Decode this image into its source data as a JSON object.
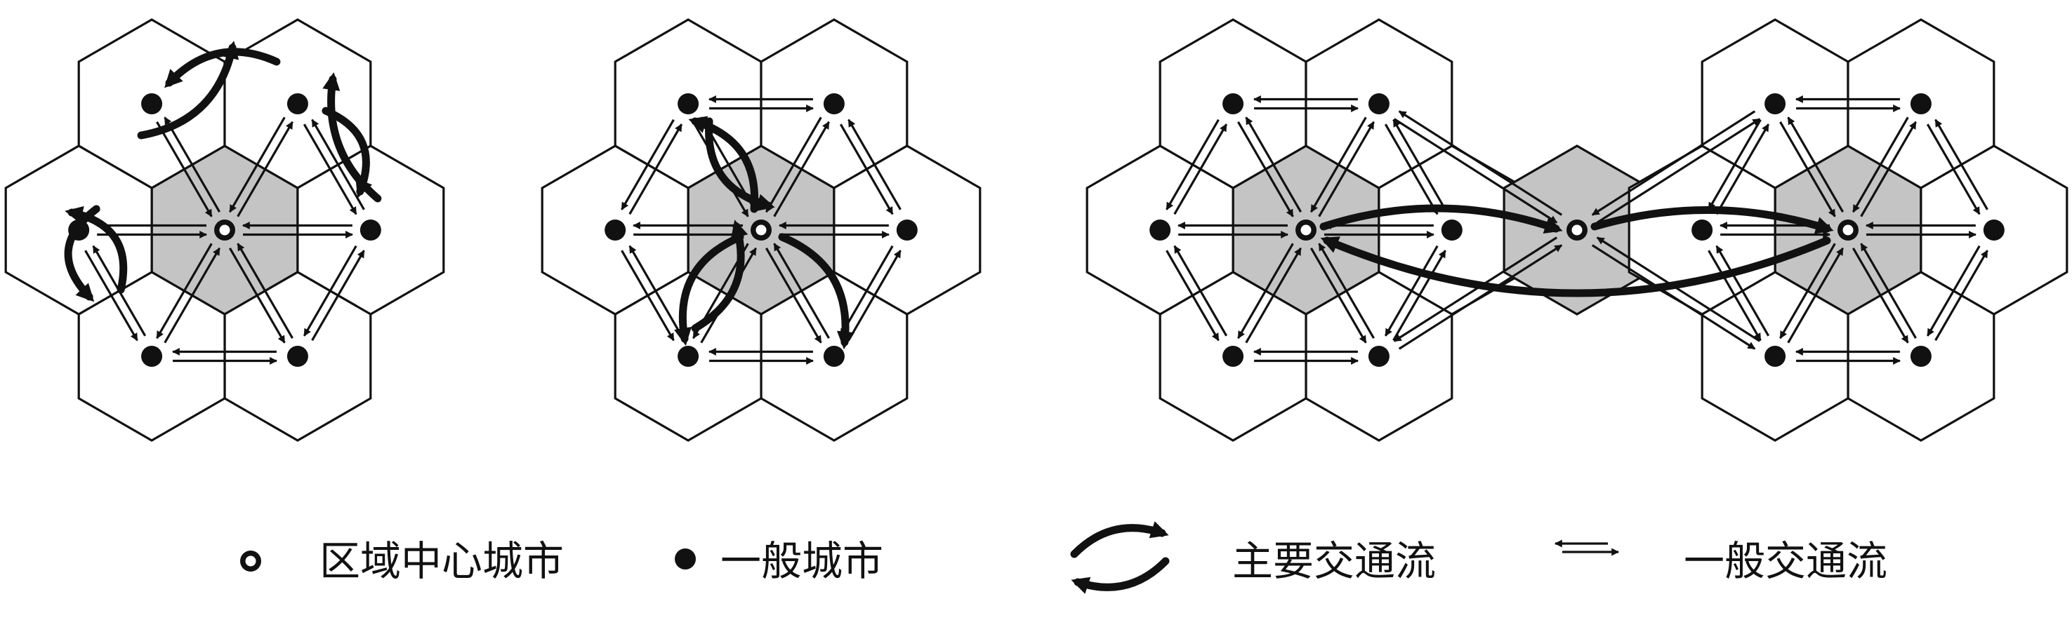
{
  "colors": {
    "hex_stroke": "#111111",
    "center_fill": "#c4c4c4",
    "city_fill": "#111111",
    "arrow": "#111111",
    "background": "#ffffff"
  },
  "legend": {
    "regional_center_city": "区域中心城市",
    "ordinary_city": "一般城市",
    "major_traffic_flow": "主要交通流",
    "ordinary_traffic_flow": "一般交通流"
  },
  "icons": {
    "regional_center_city": "ring-dot-icon",
    "ordinary_city": "filled-dot-icon",
    "major_traffic_flow": "cycle-arrows-icon",
    "ordinary_traffic_flow": "double-arrow-icon"
  },
  "diagram": {
    "panels": [
      {
        "id": "panel-1",
        "centers": 1,
        "major_flow": "between-neighbors"
      },
      {
        "id": "panel-2",
        "centers": 1,
        "major_flow": "center-to-neighbors"
      },
      {
        "id": "panel-3",
        "centers": 3,
        "major_flow": "between-centers"
      }
    ]
  }
}
